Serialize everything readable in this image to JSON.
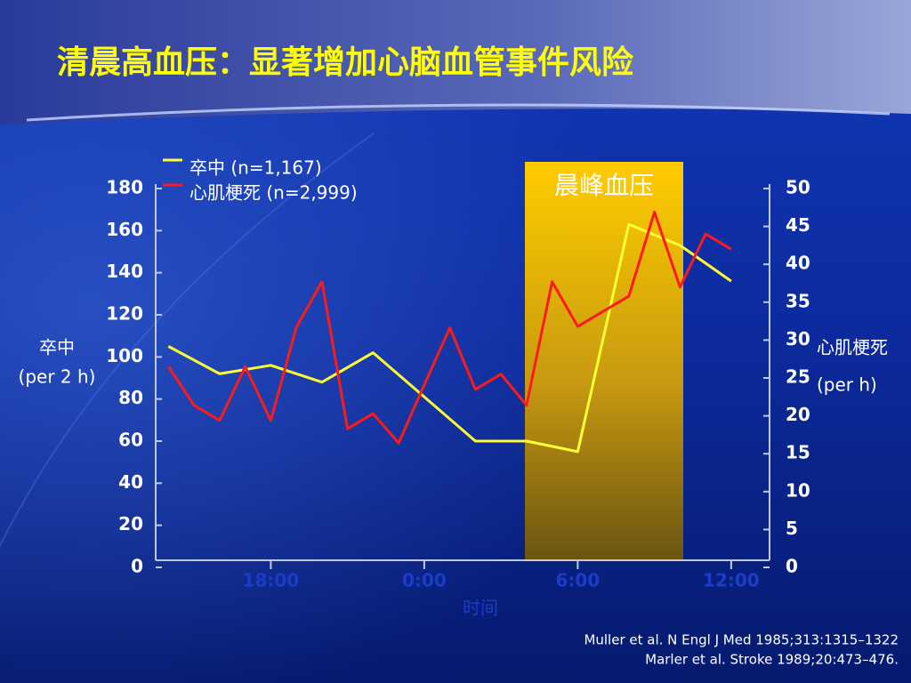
{
  "chart_data": {
    "type": "line",
    "title": "清晨高血压：显著增加心脑血管事件风险",
    "band_label": "晨峰血压",
    "xlabel": "时间",
    "ylabel": [
      "卒中",
      "(per 2 h)"
    ],
    "y2label": [
      "心肌梗死",
      "(per h)"
    ],
    "xlim": [
      13.5,
      37.5
    ],
    "xticks": [
      {
        "value": 18,
        "label": "18:00"
      },
      {
        "value": 24,
        "label": "0:00"
      },
      {
        "value": 30,
        "label": "6:00"
      },
      {
        "value": 36,
        "label": "12:00"
      }
    ],
    "ylim": [
      0,
      180
    ],
    "yticks": [
      0,
      20,
      40,
      60,
      80,
      100,
      120,
      140,
      160,
      180
    ],
    "y2lim": [
      0,
      50
    ],
    "y2ticks": [
      0,
      5,
      10,
      15,
      20,
      25,
      30,
      35,
      40,
      45,
      50
    ],
    "series": [
      {
        "name": "卒中 (n=1,167)",
        "color": "#ffff33",
        "x": [
          14,
          16,
          18,
          20,
          22,
          24,
          26,
          28,
          30,
          32,
          34,
          36
        ],
        "values": [
          105,
          92,
          96,
          88,
          102,
          81,
          60,
          60,
          55,
          163,
          153,
          136
        ]
      },
      {
        "name": "心肌梗死 (n=2,999)",
        "color": "#ff1a1a",
        "axis": "y2",
        "x": [
          14,
          15,
          16,
          17,
          18,
          19,
          20,
          21,
          22,
          23,
          24,
          25,
          26,
          27,
          28,
          29,
          30,
          31,
          32,
          33,
          34,
          35,
          36
        ],
        "values": [
          26.5,
          21.4,
          19.4,
          26.5,
          19.4,
          31.7,
          37.7,
          18.3,
          20.3,
          16.4,
          24.1,
          31.6,
          23.5,
          25.5,
          21.4,
          37.7,
          31.8,
          33.8,
          35.8,
          46.9,
          37,
          44,
          42
        ]
      }
    ]
  },
  "references": [
    "Muller et al. N Engl J Med 1985;313:1315–1322",
    "Marler et al. Stroke 1989;20:473–476."
  ]
}
